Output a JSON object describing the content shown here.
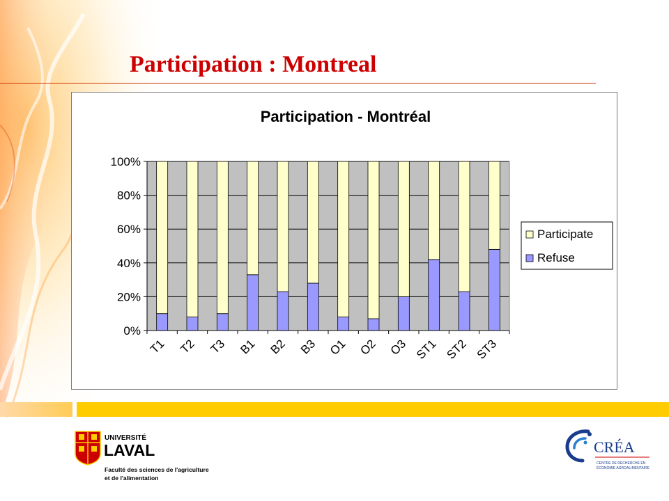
{
  "slide": {
    "title": "Participation : Montreal"
  },
  "logos": {
    "laval": {
      "line1": "UNIVERSITÉ",
      "line2": "LAVAL",
      "line3": "Faculté des sciences de l'agriculture",
      "line4": "et de l'alimentation"
    },
    "crea": {
      "name": "CRÉA",
      "line1": "CENTRE DE RECHERCHE EN",
      "line2": "ÉCONOMIE AGROALIMENTAIRE"
    }
  },
  "colors": {
    "title": "#cc0000",
    "band": "#ffcc00",
    "plot_bg": "#c0c0c0",
    "participate": "#ffffcc",
    "refuse": "#9999ff"
  },
  "chart_data": {
    "type": "bar",
    "stacked": true,
    "percent": true,
    "title": "Participation - Montréal",
    "categories": [
      "T1",
      "T2",
      "T3",
      "B1",
      "B2",
      "B3",
      "O1",
      "O2",
      "O3",
      "ST1",
      "ST2",
      "ST3"
    ],
    "series": [
      {
        "name": "Refuse",
        "color": "#9999ff",
        "values": [
          10,
          8,
          10,
          33,
          23,
          28,
          8,
          7,
          20,
          42,
          23,
          48
        ]
      },
      {
        "name": "Participate",
        "color": "#ffffcc",
        "values": [
          90,
          92,
          90,
          67,
          77,
          72,
          92,
          93,
          80,
          58,
          77,
          52
        ]
      }
    ],
    "y_ticks": [
      "0%",
      "20%",
      "40%",
      "60%",
      "80%",
      "100%"
    ],
    "ylim": [
      0,
      100
    ],
    "grid": true,
    "legend_position": "right",
    "legend_order": [
      "Participate",
      "Refuse"
    ],
    "xlabel": "",
    "ylabel": ""
  }
}
